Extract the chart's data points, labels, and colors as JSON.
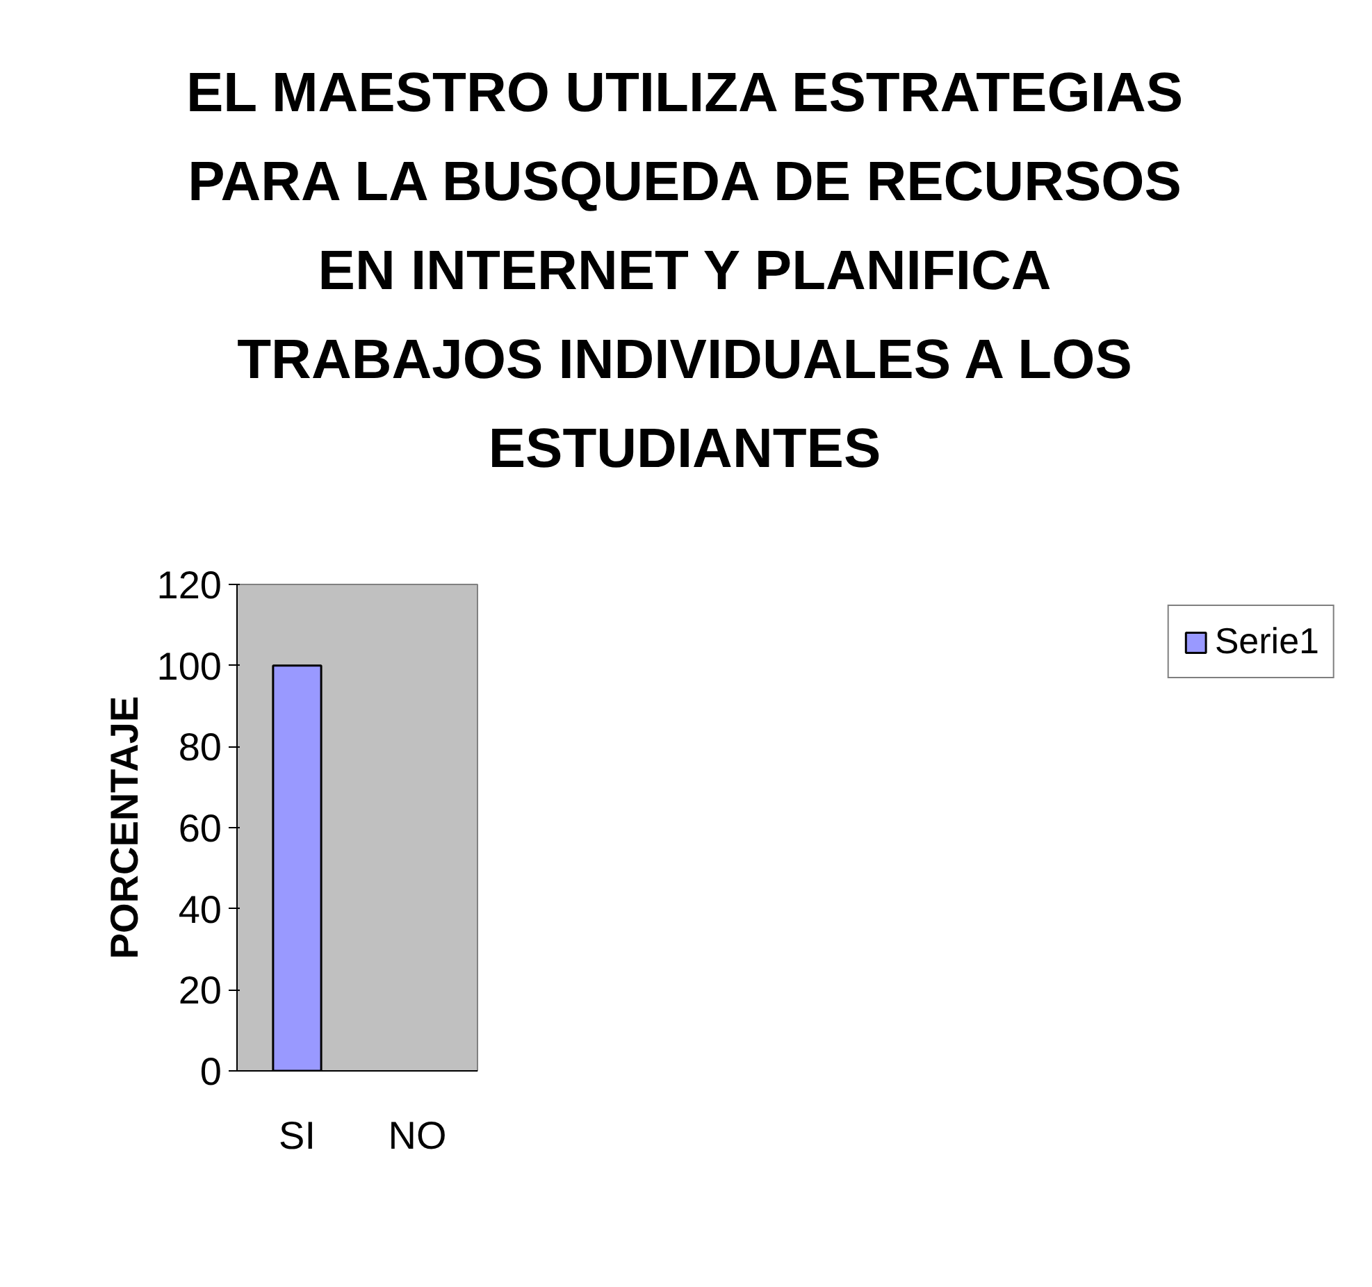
{
  "chart_data": {
    "type": "bar",
    "title": "EL MAESTRO UTILIZA ESTRATEGIAS PARA LA BUSQUEDA DE RECURSOS EN INTERNET Y PLANIFICA TRABAJOS INDIVIDUALES A LOS ESTUDIANTES",
    "ylabel": "PORCENTAJE",
    "categories": [
      "SI",
      "NO"
    ],
    "series": [
      {
        "name": "Serie1",
        "color": "#9999ff",
        "values": [
          100,
          0
        ]
      }
    ],
    "ylim": [
      0,
      120
    ],
    "yticks": [
      0,
      20,
      40,
      60,
      80,
      100,
      120
    ],
    "legend": "right",
    "grid": false
  }
}
